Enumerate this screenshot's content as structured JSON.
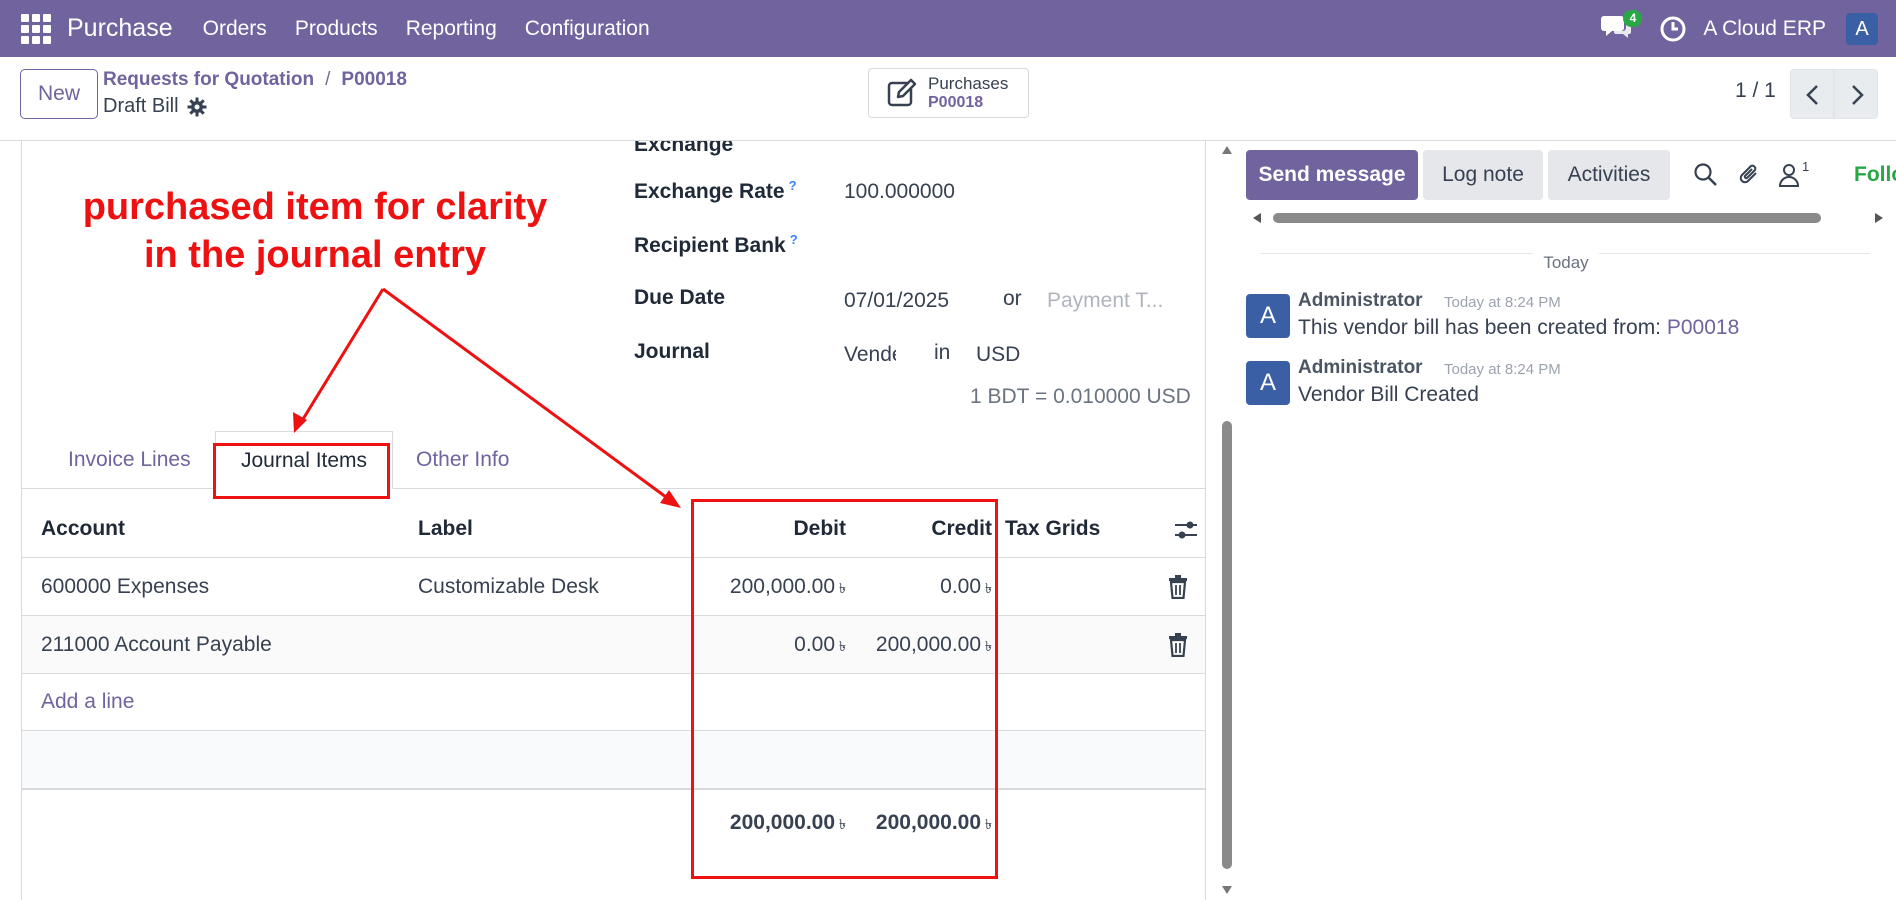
{
  "navbar": {
    "app_name": "Purchase",
    "menu": [
      "Orders",
      "Products",
      "Reporting",
      "Configuration"
    ],
    "message_count": "4",
    "company": "A Cloud ERP",
    "user_initial": "A",
    "bg_color": "#71639e"
  },
  "control_panel": {
    "new_label": "New",
    "breadcrumb": [
      "Requests for Quotation",
      "P00018"
    ],
    "record_name": "Draft Bill",
    "smart_button": {
      "title": "Purchases",
      "value": "P00018"
    },
    "pager": "1 / 1"
  },
  "form": {
    "exchange_label": "Exchange",
    "exchange_rate_label": "Exchange Rate",
    "exchange_rate_value": "100.000000",
    "recipient_bank_label": "Recipient Bank",
    "help_mark": "?",
    "due_date_label": "Due Date",
    "due_date_value": "07/01/2025",
    "or_label": "or",
    "payment_terms_placeholder": "Payment T...",
    "journal_label": "Journal",
    "journal_value": "Vendé",
    "in_label": "in",
    "currency": "USD",
    "rate_note": "1 BDT = 0.010000 USD"
  },
  "tabs": {
    "invoice_lines": "Invoice Lines",
    "journal_items": "Journal Items",
    "other_info": "Other Info"
  },
  "grid": {
    "headers": {
      "account": "Account",
      "label": "Label",
      "debit": "Debit",
      "credit": "Credit",
      "tax_grids": "Tax Grids"
    },
    "currency_symbol": "৳",
    "rows": [
      {
        "account": "600000 Expenses",
        "label": "Customizable Desk",
        "debit": "200,000.00",
        "credit": "0.00"
      },
      {
        "account": "211000 Account Payable",
        "label": "",
        "debit": "0.00",
        "credit": "200,000.00"
      }
    ],
    "add_line": "Add a line",
    "total_debit": "200,000.00",
    "total_credit": "200,000.00"
  },
  "annotation": {
    "line1": "purchased item for clarity",
    "line2": "in the journal entry",
    "color": "#ee1111"
  },
  "chatter": {
    "send_message": "Send message",
    "log_note": "Log note",
    "activities": "Activities",
    "follower_count": "1",
    "follow": "Follow",
    "today": "Today",
    "messages": [
      {
        "author": "Administrator",
        "date": "Today at 8:24 PM",
        "body": "This vendor bill has been created from: ",
        "link": "P00018"
      },
      {
        "author": "Administrator",
        "date": "Today at 8:24 PM",
        "body": "Vendor Bill Created",
        "link": ""
      }
    ]
  }
}
